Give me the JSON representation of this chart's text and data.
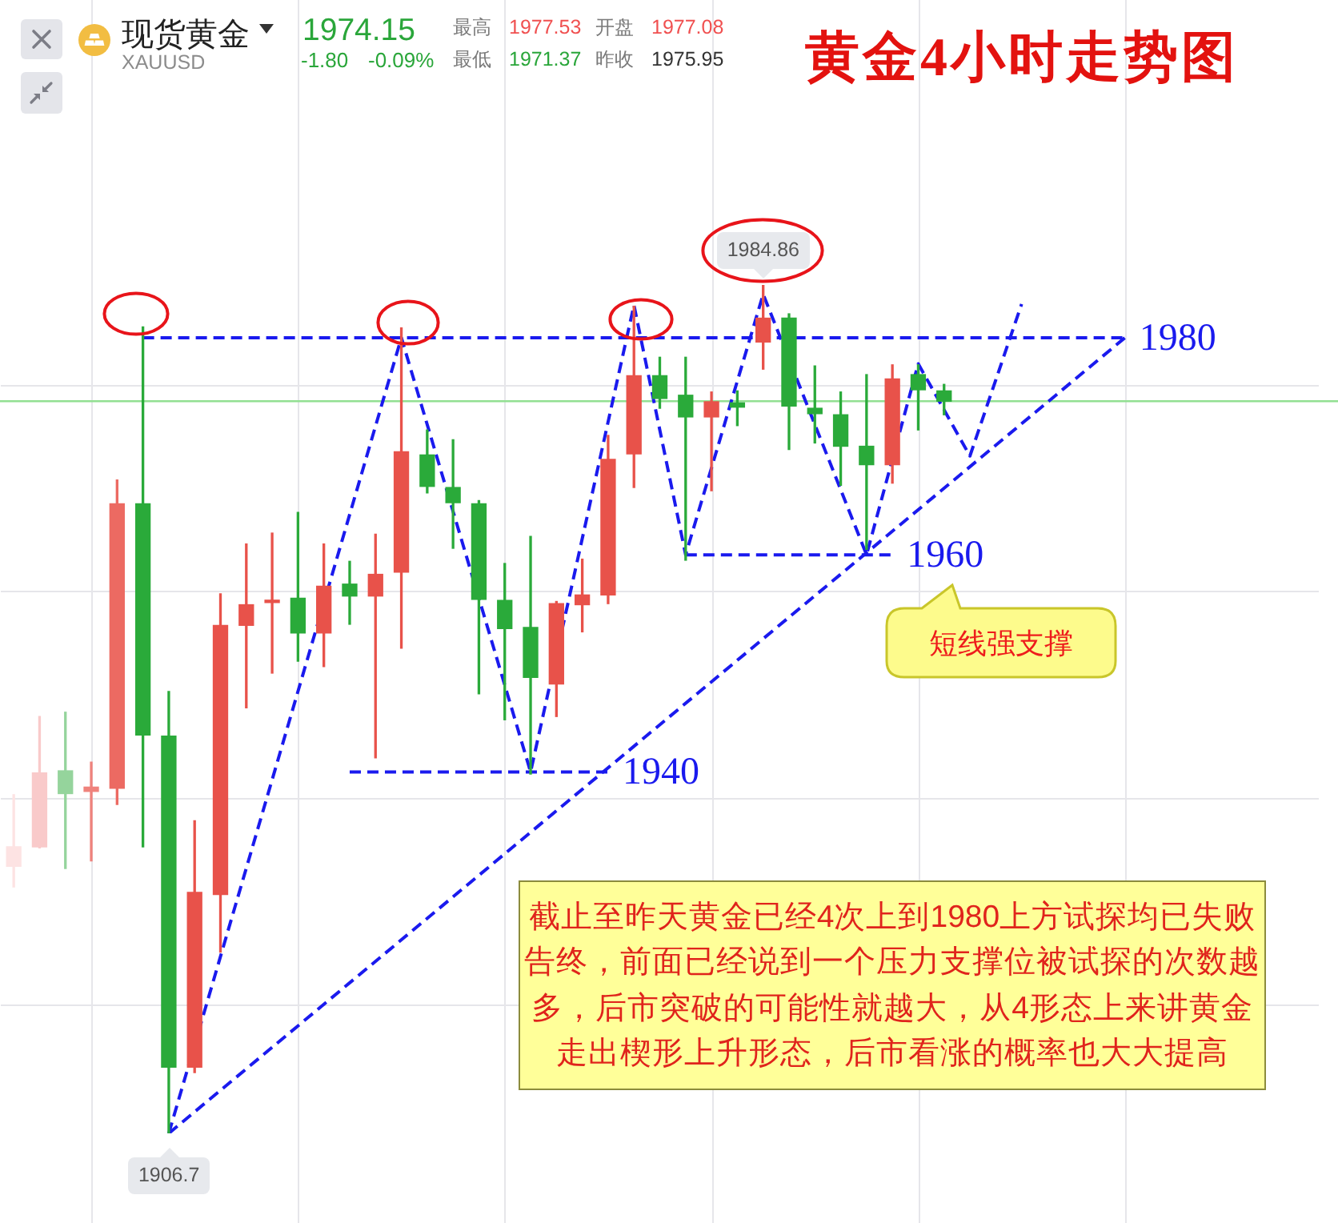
{
  "chart_data": {
    "type": "candlestick",
    "title": "黄金4小时走势图",
    "subtitle": "现货黄金",
    "categories": [
      null,
      null,
      null,
      null,
      null,
      null,
      null,
      null,
      null,
      null,
      null,
      null,
      null,
      null,
      null,
      null,
      null,
      null,
      null,
      null,
      null,
      null,
      null,
      null,
      null,
      null,
      null,
      null,
      null,
      null,
      null,
      null,
      null,
      null,
      null,
      null,
      null,
      null,
      null,
      null,
      null,
      null,
      null,
      null,
      null,
      null,
      null,
      null,
      null,
      null,
      null
    ],
    "ohlc": [
      [
        1931.3,
        1937.9,
        1929.4,
        1933.1
      ],
      [
        1933.1,
        1945.1,
        1933.0,
        1939.9
      ],
      [
        1940.1,
        1945.5,
        1931.1,
        1938.0
      ],
      [
        1938.2,
        1940.9,
        1931.8,
        1938.6
      ],
      [
        1938.5,
        1966.9,
        1937.0,
        1964.7
      ],
      [
        1964.7,
        1981.0,
        1933.1,
        1943.4
      ],
      [
        1943.3,
        1947.4,
        1906.7,
        1912.8
      ],
      [
        1912.8,
        1935.5,
        1912.3,
        1928.9
      ],
      [
        1928.7,
        1956.4,
        1923.4,
        1953.5
      ],
      [
        1953.5,
        1961.0,
        1945.9,
        1955.4
      ],
      [
        1955.6,
        1962.0,
        1949.1,
        1955.8
      ],
      [
        1956.0,
        1963.9,
        1950.2,
        1952.8
      ],
      [
        1952.8,
        1961.0,
        1949.7,
        1957.1
      ],
      [
        1957.3,
        1959.4,
        1953.6,
        1956.2
      ],
      [
        1956.2,
        1961.9,
        1941.3,
        1958.2
      ],
      [
        1958.4,
        1980.9,
        1951.4,
        1969.5
      ],
      [
        1969.2,
        1971.5,
        1965.7,
        1966.3
      ],
      [
        1966.2,
        1970.6,
        1960.6,
        1964.8
      ],
      [
        1964.7,
        1965.0,
        1947.2,
        1955.9
      ],
      [
        1955.8,
        1959.2,
        1944.8,
        1953.2
      ],
      [
        1953.3,
        1961.7,
        1939.8,
        1948.7
      ],
      [
        1948.1,
        1955.7,
        1945.1,
        1955.5
      ],
      [
        1955.4,
        1959.6,
        1952.9,
        1956.3
      ],
      [
        1956.3,
        1971.0,
        1955.5,
        1968.8
      ],
      [
        1969.3,
        1982.9,
        1966.2,
        1976.5
      ],
      [
        1976.5,
        1978.2,
        1973.5,
        1974.4
      ],
      [
        1974.7,
        1978.2,
        1959.5,
        1972.7
      ],
      [
        1972.7,
        1975.0,
        1965.9,
        1974.1
      ],
      [
        1974.0,
        1975.1,
        1971.9,
        1973.6
      ],
      [
        1979.6,
        1984.86,
        1977.1,
        1981.8
      ],
      [
        1981.8,
        1982.2,
        1969.7,
        1973.7
      ],
      [
        1973.5,
        1977.4,
        1970.3,
        1973.0
      ],
      [
        1972.9,
        1975.0,
        1966.4,
        1970.0
      ],
      [
        1970.0,
        1976.6,
        1960.5,
        1968.3
      ],
      [
        1968.3,
        1977.5,
        1966.6,
        1976.2
      ],
      [
        1976.6,
        1977.5,
        1971.5,
        1975.2
      ],
      [
        1975.1,
        1975.7,
        1972.9,
        1974.15
      ],
      null,
      null,
      null,
      null,
      null,
      null,
      null,
      null,
      null,
      null,
      null,
      null,
      null,
      null
    ],
    "colors": [
      "#fde3e3",
      "#f9caca",
      "#95d49c",
      "#ef827c",
      "#ec6a62",
      "#2aaa3a",
      "#2aaa3a",
      "#e8524a",
      "#e8524a",
      "#e8524a",
      "#e8524a",
      "#2aaa3a",
      "#e8524a",
      "#2aaa3a",
      "#e8524a",
      "#e8524a",
      "#2aaa3a",
      "#2aaa3a",
      "#2aaa3a",
      "#2aaa3a",
      "#2aaa3a",
      "#e8524a",
      "#e8524a",
      "#e8524a",
      "#e8524a",
      "#2aaa3a",
      "#2aaa3a",
      "#e8524a",
      "#2aaa3a",
      "#e8524a",
      "#2aaa3a",
      "#2aaa3a",
      "#2aaa3a",
      "#2aaa3a",
      "#e8524a",
      "#2aaa3a",
      "#2aaa3a",
      null,
      null,
      null,
      null,
      null,
      null,
      null,
      null,
      null,
      null,
      null,
      null,
      null,
      null
    ],
    "series": [
      {
        "type": "line",
        "color": "#1a1aee",
        "values": [
          null,
          null,
          null,
          null,
          null,
          null,
          1906.7,
          null,
          null,
          null,
          null,
          null,
          null,
          null,
          null,
          1980,
          null,
          null,
          null,
          null,
          1940,
          null,
          null,
          null,
          1983,
          null,
          1960,
          null,
          null,
          1984,
          null,
          null,
          null,
          1960,
          null,
          1977.6,
          null,
          1969.1,
          null,
          1983.1,
          null,
          null,
          null,
          null,
          null,
          null,
          null,
          null,
          null,
          null,
          null
        ]
      },
      {
        "type": "line",
        "color": "#1a1aee",
        "values": [
          null,
          null,
          null,
          null,
          null,
          null,
          1906.7,
          null,
          null,
          null,
          null,
          null,
          null,
          null,
          null,
          null,
          null,
          null,
          null,
          null,
          null,
          null,
          null,
          null,
          null,
          null,
          null,
          null,
          null,
          null,
          null,
          null,
          null,
          null,
          null,
          null,
          null,
          null,
          null,
          null,
          null,
          null,
          null,
          1980,
          null,
          null,
          null,
          null,
          null,
          null,
          null
        ]
      },
      {
        "type": "line",
        "name": "1980",
        "color": "#1a1aee",
        "values": [
          null,
          null,
          null,
          null,
          null,
          1980,
          null,
          null,
          null,
          null,
          null,
          null,
          null,
          null,
          null,
          null,
          null,
          null,
          null,
          null,
          null,
          null,
          null,
          null,
          null,
          null,
          null,
          null,
          null,
          null,
          null,
          null,
          null,
          null,
          null,
          null,
          null,
          null,
          null,
          null,
          null,
          null,
          null,
          1980,
          null,
          null,
          null,
          null,
          null,
          null,
          null
        ]
      },
      {
        "type": "line",
        "name": "1960",
        "color": "#1a1aee",
        "values": [
          null,
          null,
          null,
          null,
          null,
          null,
          null,
          null,
          null,
          null,
          null,
          null,
          null,
          null,
          null,
          null,
          null,
          null,
          null,
          null,
          null,
          null,
          null,
          null,
          null,
          null,
          1960,
          null,
          null,
          null,
          null,
          null,
          null,
          null,
          1960,
          null,
          null,
          null,
          null,
          null,
          null,
          null,
          null,
          null,
          null,
          null,
          null,
          null,
          null,
          null,
          null
        ]
      },
      {
        "type": "line",
        "name": "1940",
        "color": "#1a1aee",
        "values": [
          null,
          null,
          null,
          null,
          null,
          null,
          null,
          null,
          null,
          null,
          null,
          null,
          null,
          1940,
          null,
          null,
          null,
          null,
          null,
          null,
          null,
          null,
          null,
          1940,
          null,
          null,
          null,
          null,
          null,
          null,
          null,
          null,
          null,
          null,
          null,
          null,
          null,
          null,
          null,
          null,
          null,
          null,
          null,
          null,
          null,
          null,
          null,
          null,
          null,
          null,
          null
        ]
      }
    ],
    "ref_lines": [
      {
        "axis": "y",
        "value": 1974.15,
        "color": "#92e092"
      }
    ],
    "yticks": [
      {
        "value": 1918.5,
        "label": null
      },
      {
        "value": 1937.5,
        "label": null
      },
      {
        "value": 1956.6,
        "label": null
      },
      {
        "value": 1975.6,
        "label": null
      }
    ],
    "grid": true,
    "legend": false,
    "tick_labels": false,
    "marker": "none",
    "line_style": "dashed",
    "annotations": [
      "XAUUSD",
      "1974.15",
      "-1.80",
      "-0.09%",
      "最高",
      "1977.53",
      "开盘",
      "1977.08",
      "最低",
      "1971.37",
      "昨收",
      "1975.95",
      "短线强支撑",
      "截止至昨天黄金已经4次上到1980上方试探均已失败告终，前面已经说到一个压力支撑位被试探的次数越多，后市突破的可能性就越大，从4形态上来讲黄金走出楔形上升形态，后市看涨的概率也大大提高",
      {
        "text": "1984.86",
        "y": 1984.86
      },
      {
        "text": "1906.7",
        "y": 1906.7
      }
    ]
  }
}
